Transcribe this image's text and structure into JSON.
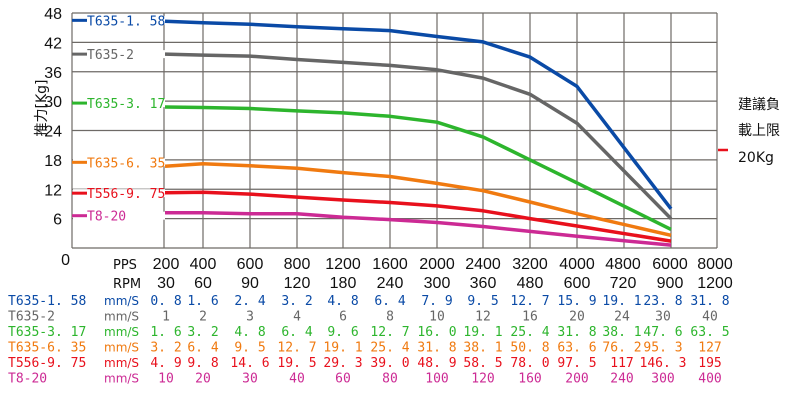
{
  "chart_data": {
    "type": "line",
    "title": "",
    "ylabel": "推力[Kg]",
    "xlabel": "",
    "ylim": [
      0,
      48
    ],
    "y_ticks": [
      0,
      6,
      12,
      18,
      24,
      30,
      36,
      42,
      48
    ],
    "grid": true,
    "x_rows": {
      "pps": {
        "label": "PPS",
        "values": [
          "200",
          "400",
          "600",
          "800",
          "1200",
          "1600",
          "2000",
          "2400",
          "3200",
          "4000",
          "4800",
          "6000",
          "8000"
        ]
      },
      "rpm": {
        "label": "RPM",
        "values": [
          "30",
          "60",
          "90",
          "120",
          "180",
          "240",
          "300",
          "360",
          "480",
          "600",
          "720",
          "900",
          "1200"
        ]
      }
    },
    "categories": [
      "200",
      "400",
      "600",
      "800",
      "1200",
      "1600",
      "2000",
      "2400",
      "3200",
      "4000",
      "4800",
      "6000"
    ],
    "series": [
      {
        "name": "T635-1.58",
        "color": "#0a4aa6",
        "values": [
          46.3,
          46.0,
          45.7,
          45.2,
          44.8,
          44.4,
          43.2,
          42.1,
          39.0,
          33.0,
          null,
          8.0
        ]
      },
      {
        "name": "T635-2",
        "color": "#666666",
        "values": [
          39.6,
          39.4,
          39.2,
          38.5,
          37.9,
          37.3,
          36.4,
          34.7,
          31.4,
          25.5,
          null,
          6.0
        ]
      },
      {
        "name": "T635-3.17",
        "color": "#2db52d",
        "values": [
          28.8,
          28.7,
          28.5,
          28.0,
          27.6,
          26.9,
          25.7,
          22.7,
          18.0,
          13.3,
          null,
          3.8
        ]
      },
      {
        "name": "T635-6.35",
        "color": "#f07a10",
        "values": [
          16.7,
          17.2,
          16.8,
          16.3,
          15.4,
          14.6,
          13.2,
          11.7,
          9.4,
          7.0,
          null,
          2.6
        ]
      },
      {
        "name": "T556-9.75",
        "color": "#e8101c",
        "values": [
          11.3,
          11.4,
          11.0,
          10.4,
          9.8,
          9.3,
          8.6,
          7.6,
          6.0,
          4.5,
          null,
          1.4
        ]
      },
      {
        "name": "T8-20",
        "color": "#cc2a94",
        "values": [
          7.2,
          7.2,
          7.0,
          7.0,
          6.3,
          5.8,
          5.2,
          4.4,
          3.4,
          2.4,
          null,
          0.6
        ]
      }
    ],
    "annotation": {
      "lines": [
        "建議負",
        "載上限",
        "20Kg"
      ],
      "marker_color": "#e8101c",
      "value": 20
    },
    "legend_position": "inside-left"
  },
  "y_axis": {
    "label": "推力[Kg]",
    "ticks": [
      "48",
      "42",
      "36",
      "30",
      "24",
      "18",
      "12",
      "6",
      "0"
    ]
  },
  "x_axis": {
    "pps_label": "PPS",
    "rpm_label": "RPM",
    "pps": [
      "200",
      "400",
      "600",
      "800",
      "1200",
      "1600",
      "2000",
      "2400",
      "3200",
      "4000",
      "4800",
      "6000",
      "8000"
    ],
    "rpm": [
      "30",
      "60",
      "90",
      "120",
      "180",
      "240",
      "300",
      "360",
      "480",
      "600",
      "720",
      "900",
      "1200"
    ]
  },
  "legend": [
    {
      "label": "T635-1. 58",
      "color": "#0a4aa6"
    },
    {
      "label": "T635-2",
      "color": "#666666"
    },
    {
      "label": "T635-3. 17",
      "color": "#2db52d"
    },
    {
      "label": "T635-6. 35",
      "color": "#f07a10"
    },
    {
      "label": "T556-9. 75",
      "color": "#e8101c"
    },
    {
      "label": "T8-20",
      "color": "#cc2a94"
    }
  ],
  "note": {
    "line1": "建議負",
    "line2": "載上限",
    "line3": "20Kg"
  },
  "speed_table": {
    "unit": "mm/S",
    "rows": [
      {
        "name": "T635-1. 58",
        "color": "#0a4aa6",
        "values": [
          "0. 8",
          "1. 6",
          "2. 4",
          "3. 2",
          "4. 8",
          "6. 4",
          "7. 9",
          "9. 5",
          "12. 7",
          "15. 9",
          "19. 1",
          "23. 8",
          "31. 8"
        ]
      },
      {
        "name": "T635-2",
        "color": "#666666",
        "values": [
          "1",
          "2",
          "3",
          "4",
          "6",
          "8",
          "10",
          "12",
          "16",
          "20",
          "24",
          "30",
          "40"
        ]
      },
      {
        "name": "T635-3. 17",
        "color": "#2db52d",
        "values": [
          "1. 6",
          "3. 2",
          "4. 8",
          "6. 4",
          "9. 6",
          "12. 7",
          "16. 0",
          "19. 1",
          "25. 4",
          "31. 8",
          "38. 1",
          "47. 6",
          "63. 5"
        ]
      },
      {
        "name": "T635-6. 35",
        "color": "#f07a10",
        "values": [
          "3. 2",
          "6. 4",
          "9. 5",
          "12. 7",
          "19. 1",
          "25. 4",
          "31. 8",
          "38. 1",
          "50. 8",
          "63. 6",
          "76. 2",
          "95. 3",
          "127"
        ]
      },
      {
        "name": "T556-9. 75",
        "color": "#e8101c",
        "values": [
          "4. 9",
          "9. 8",
          "14. 6",
          "19. 5",
          "29. 3",
          "39. 0",
          "48. 9",
          "58. 5",
          "78. 0",
          "97. 5",
          "117",
          "146. 3",
          "195"
        ]
      },
      {
        "name": "T8-20",
        "color": "#cc2a94",
        "values": [
          "10",
          "20",
          "30",
          "40",
          "60",
          "80",
          "100",
          "120",
          "160",
          "200",
          "240",
          "300",
          "400"
        ]
      }
    ]
  }
}
